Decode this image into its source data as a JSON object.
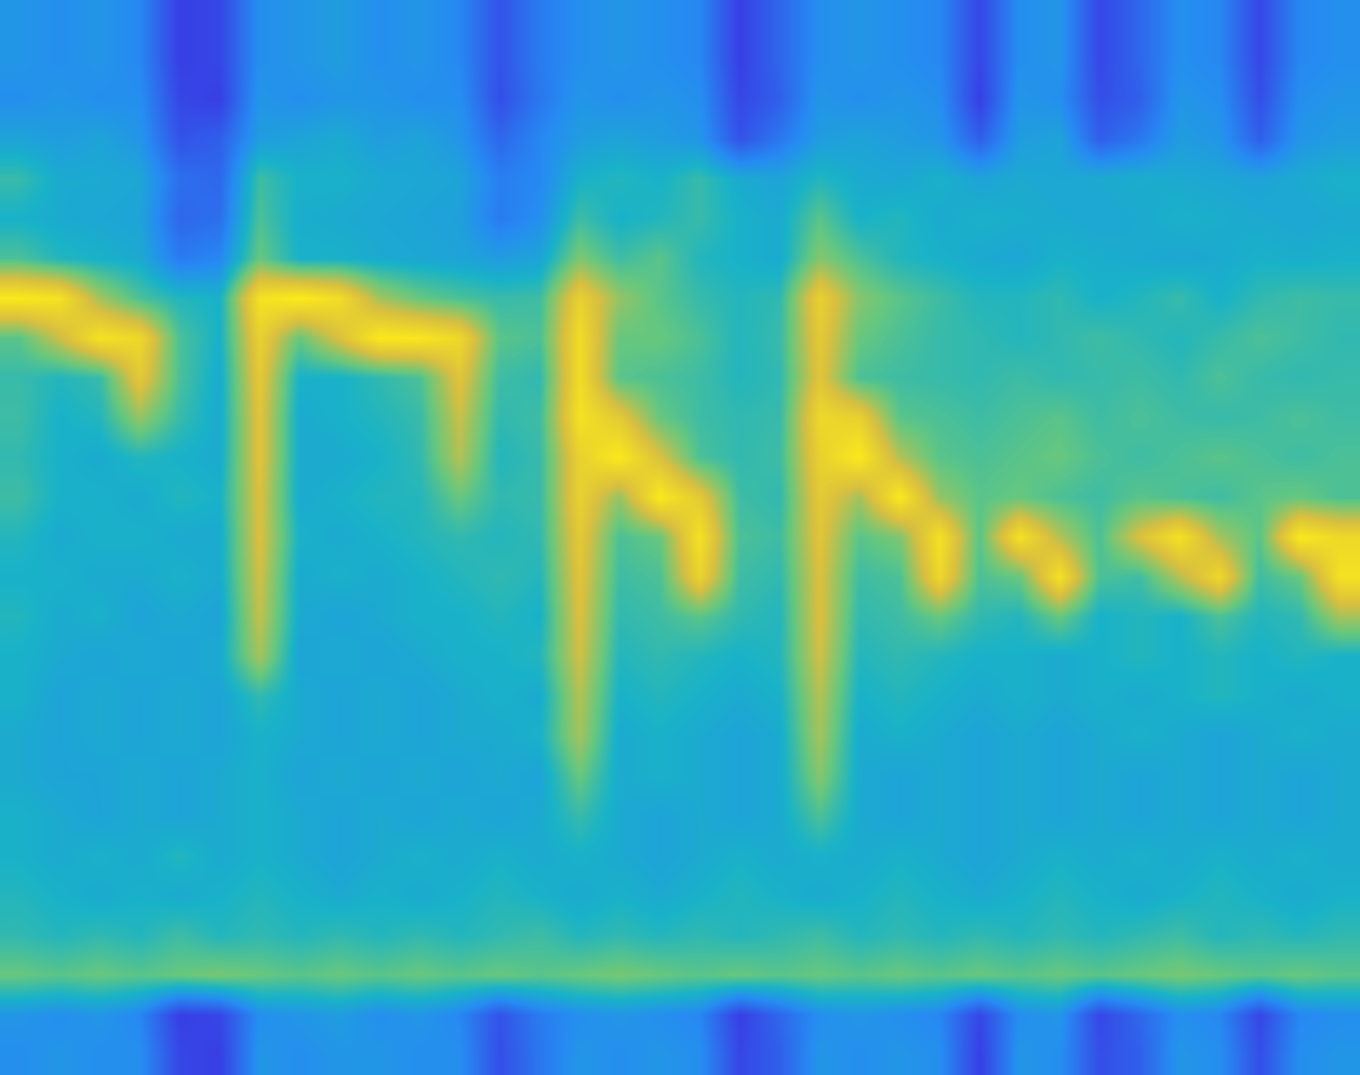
{
  "chart_data": {
    "type": "heatmap",
    "tick_labels": false,
    "cells": [
      [
        42,
        40,
        42,
        38,
        20,
        22,
        40,
        42,
        44,
        40,
        42,
        38,
        25,
        35,
        40,
        42,
        40,
        38,
        20,
        30,
        40,
        42,
        40,
        38,
        22,
        40,
        42,
        22,
        30,
        40,
        38,
        22,
        38,
        40
      ],
      [
        42,
        40,
        42,
        38,
        20,
        22,
        40,
        42,
        44,
        40,
        42,
        38,
        25,
        35,
        40,
        42,
        40,
        38,
        20,
        30,
        40,
        42,
        40,
        38,
        22,
        40,
        42,
        22,
        30,
        40,
        38,
        22,
        38,
        40
      ],
      [
        40,
        42,
        40,
        40,
        22,
        20,
        42,
        40,
        42,
        42,
        40,
        40,
        24,
        34,
        42,
        40,
        42,
        40,
        22,
        28,
        42,
        40,
        42,
        40,
        20,
        42,
        40,
        24,
        28,
        42,
        40,
        24,
        40,
        42
      ],
      [
        46,
        44,
        46,
        42,
        25,
        28,
        44,
        46,
        48,
        44,
        46,
        42,
        30,
        38,
        44,
        46,
        44,
        42,
        25,
        34,
        44,
        46,
        44,
        42,
        28,
        44,
        46,
        28,
        34,
        44,
        42,
        28,
        42,
        44
      ],
      [
        55,
        48,
        48,
        47,
        32,
        30,
        56,
        50,
        50,
        48,
        47,
        46,
        36,
        38,
        50,
        52,
        50,
        55,
        48,
        46,
        52,
        48,
        47,
        50,
        46,
        48,
        47,
        48,
        49,
        48,
        47,
        46,
        48,
        50
      ],
      [
        50,
        48,
        47,
        46,
        30,
        32,
        58,
        49,
        48,
        47,
        46,
        45,
        35,
        40,
        56,
        50,
        52,
        55,
        50,
        48,
        60,
        50,
        52,
        48,
        50,
        49,
        48,
        47,
        48,
        50,
        49,
        48,
        47,
        48
      ],
      [
        58,
        52,
        50,
        48,
        35,
        38,
        62,
        50,
        50,
        48,
        47,
        46,
        44,
        46,
        65,
        56,
        60,
        52,
        50,
        48,
        66,
        58,
        52,
        50,
        48,
        47,
        50,
        49,
        48,
        47,
        48,
        50,
        49,
        50
      ],
      [
        95,
        92,
        70,
        58,
        52,
        50,
        92,
        96,
        90,
        70,
        62,
        58,
        55,
        56,
        85,
        68,
        60,
        55,
        52,
        54,
        85,
        66,
        60,
        56,
        52,
        52,
        54,
        50,
        52,
        55,
        50,
        54,
        56,
        55
      ],
      [
        60,
        75,
        92,
        88,
        58,
        50,
        85,
        62,
        78,
        95,
        94,
        88,
        60,
        58,
        90,
        62,
        62,
        58,
        52,
        55,
        82,
        62,
        58,
        55,
        54,
        52,
        54,
        56,
        54,
        52,
        55,
        58,
        56,
        54
      ],
      [
        55,
        52,
        55,
        82,
        58,
        48,
        82,
        50,
        50,
        54,
        58,
        80,
        56,
        54,
        90,
        60,
        58,
        56,
        52,
        54,
        80,
        58,
        56,
        55,
        54,
        56,
        54,
        55,
        56,
        54,
        58,
        55,
        54,
        55
      ],
      [
        56,
        50,
        52,
        68,
        55,
        48,
        80,
        48,
        50,
        52,
        55,
        75,
        54,
        56,
        92,
        82,
        62,
        56,
        54,
        55,
        88,
        85,
        60,
        58,
        56,
        58,
        60,
        56,
        58,
        56,
        55,
        56,
        58,
        56
      ],
      [
        54,
        50,
        48,
        52,
        50,
        48,
        80,
        48,
        48,
        50,
        54,
        72,
        52,
        55,
        85,
        95,
        78,
        58,
        54,
        56,
        85,
        95,
        72,
        60,
        58,
        60,
        62,
        58,
        56,
        58,
        60,
        58,
        56,
        58
      ],
      [
        56,
        50,
        50,
        48,
        52,
        50,
        78,
        48,
        50,
        52,
        52,
        62,
        54,
        55,
        85,
        68,
        95,
        82,
        56,
        54,
        82,
        70,
        95,
        68,
        60,
        62,
        58,
        56,
        60,
        58,
        56,
        60,
        62,
        58
      ],
      [
        52,
        48,
        50,
        50,
        48,
        48,
        78,
        50,
        48,
        50,
        52,
        54,
        52,
        54,
        82,
        58,
        62,
        92,
        58,
        56,
        80,
        60,
        65,
        92,
        60,
        92,
        72,
        58,
        78,
        92,
        70,
        60,
        95,
        88
      ],
      [
        50,
        50,
        48,
        48,
        50,
        48,
        76,
        48,
        50,
        48,
        50,
        52,
        54,
        52,
        80,
        56,
        58,
        86,
        56,
        54,
        78,
        56,
        58,
        88,
        58,
        62,
        92,
        58,
        56,
        72,
        88,
        56,
        62,
        92
      ],
      [
        52,
        48,
        50,
        46,
        48,
        46,
        74,
        48,
        46,
        48,
        50,
        50,
        52,
        50,
        78,
        54,
        56,
        60,
        54,
        52,
        78,
        54,
        56,
        62,
        54,
        52,
        62,
        50,
        52,
        50,
        58,
        52,
        54,
        70
      ],
      [
        50,
        48,
        46,
        48,
        46,
        48,
        70,
        46,
        48,
        46,
        48,
        50,
        50,
        52,
        76,
        52,
        54,
        52,
        50,
        52,
        76,
        52,
        54,
        52,
        50,
        50,
        48,
        50,
        52,
        50,
        52,
        50,
        52,
        50
      ],
      [
        50,
        46,
        48,
        46,
        48,
        46,
        54,
        48,
        46,
        48,
        46,
        48,
        50,
        48,
        72,
        50,
        52,
        50,
        48,
        50,
        72,
        50,
        52,
        50,
        48,
        50,
        48,
        50,
        48,
        50,
        52,
        50,
        48,
        50
      ],
      [
        48,
        46,
        48,
        46,
        48,
        46,
        50,
        48,
        46,
        48,
        46,
        48,
        48,
        50,
        70,
        48,
        50,
        48,
        46,
        48,
        70,
        48,
        50,
        48,
        46,
        48,
        46,
        48,
        50,
        48,
        46,
        48,
        50,
        48
      ],
      [
        48,
        46,
        46,
        48,
        46,
        48,
        50,
        46,
        48,
        46,
        48,
        46,
        48,
        46,
        62,
        48,
        50,
        48,
        46,
        48,
        66,
        48,
        46,
        48,
        46,
        48,
        46,
        48,
        46,
        48,
        46,
        48,
        46,
        48
      ],
      [
        50,
        48,
        46,
        48,
        46,
        48,
        50,
        48,
        46,
        48,
        46,
        48,
        46,
        48,
        55,
        48,
        46,
        48,
        46,
        48,
        58,
        48,
        46,
        48,
        46,
        48,
        46,
        48,
        46,
        48,
        46,
        48,
        46,
        48
      ],
      [
        50,
        48,
        50,
        48,
        52,
        48,
        50,
        48,
        46,
        48,
        50,
        48,
        50,
        48,
        50,
        48,
        46,
        48,
        50,
        48,
        50,
        48,
        50,
        48,
        46,
        48,
        50,
        48,
        50,
        48,
        50,
        48,
        50,
        48
      ],
      [
        52,
        50,
        48,
        50,
        48,
        50,
        52,
        50,
        48,
        50,
        48,
        50,
        52,
        50,
        48,
        50,
        48,
        50,
        52,
        50,
        48,
        50,
        52,
        50,
        48,
        50,
        52,
        50,
        48,
        50,
        52,
        50,
        48,
        50
      ],
      [
        54,
        52,
        54,
        52,
        56,
        52,
        54,
        52,
        54,
        52,
        54,
        52,
        54,
        56,
        52,
        54,
        52,
        54,
        52,
        54,
        56,
        52,
        54,
        52,
        54,
        52,
        54,
        52,
        54,
        56,
        52,
        54,
        52,
        54
      ],
      [
        62,
        60,
        62,
        60,
        62,
        64,
        62,
        60,
        62,
        60,
        62,
        60,
        62,
        60,
        62,
        64,
        62,
        60,
        62,
        60,
        62,
        60,
        62,
        60,
        62,
        60,
        62,
        60,
        62,
        64,
        62,
        60,
        62,
        60
      ],
      [
        42,
        40,
        42,
        38,
        20,
        22,
        40,
        42,
        44,
        40,
        42,
        38,
        25,
        35,
        40,
        42,
        40,
        38,
        20,
        30,
        40,
        42,
        40,
        38,
        22,
        40,
        42,
        22,
        30,
        40,
        38,
        22,
        38,
        40
      ],
      [
        40,
        42,
        40,
        40,
        22,
        20,
        42,
        40,
        42,
        42,
        40,
        40,
        24,
        34,
        42,
        40,
        42,
        40,
        22,
        28,
        42,
        40,
        42,
        40,
        20,
        42,
        40,
        24,
        28,
        42,
        40,
        24,
        40,
        42
      ]
    ]
  }
}
